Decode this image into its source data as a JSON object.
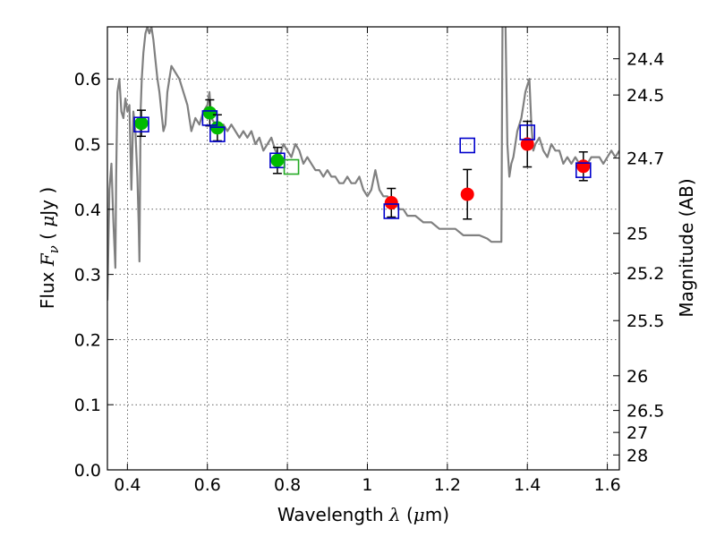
{
  "chart_data": {
    "type": "scatter",
    "xlabel": {
      "pre": "Wavelength  ",
      "sym": "λ",
      "open": " (",
      "mu": "μ",
      "unit": "m)"
    },
    "ylabel": {
      "pre": "Flux  ",
      "sym": "F",
      "sub": "ν",
      "open": "  ( ",
      "mu": "μ",
      "unit": "Jy )"
    },
    "y2label": "Magnitude (AB)",
    "xlim": [
      0.35,
      1.63
    ],
    "ylim": [
      0.0,
      0.68
    ],
    "grid": true,
    "x_ticks": [
      0.4,
      0.6,
      0.8,
      1.0,
      1.2,
      1.4,
      1.6
    ],
    "x_tick_labels": [
      "0.4",
      "0.6",
      "0.8",
      "1",
      "1.2",
      "1.4",
      "1.6"
    ],
    "y_ticks": [
      0.0,
      0.1,
      0.2,
      0.3,
      0.4,
      0.5,
      0.6
    ],
    "y_tick_labels": [
      "0.0",
      "0.1",
      "0.2",
      "0.3",
      "0.4",
      "0.5",
      "0.6"
    ],
    "y2_ticks": [
      {
        "label": "24.4",
        "flux": 0.631
      },
      {
        "label": "24.5",
        "flux": 0.5754
      },
      {
        "label": "24.7",
        "flux": 0.4786
      },
      {
        "label": "25",
        "flux": 0.3631
      },
      {
        "label": "25.2",
        "flux": 0.302
      },
      {
        "label": "25.5",
        "flux": 0.2291
      },
      {
        "label": "26",
        "flux": 0.1445
      },
      {
        "label": "26.5",
        "flux": 0.0912
      },
      {
        "label": "27",
        "flux": 0.0575
      },
      {
        "label": "28",
        "flux": 0.0229
      }
    ],
    "colors": {
      "model": "#808080",
      "optical": "#00bb00",
      "infrared": "#ff0000",
      "model_band": "#0000cc",
      "hollow_optical": "#22aa22",
      "errorbar": "#000000"
    },
    "model_spectrum": {
      "x": [
        0.35,
        0.355,
        0.36,
        0.365,
        0.37,
        0.372,
        0.375,
        0.38,
        0.385,
        0.39,
        0.395,
        0.4,
        0.405,
        0.41,
        0.415,
        0.42,
        0.425,
        0.428,
        0.43,
        0.433,
        0.436,
        0.44,
        0.445,
        0.45,
        0.455,
        0.46,
        0.465,
        0.47,
        0.475,
        0.48,
        0.485,
        0.49,
        0.495,
        0.5,
        0.51,
        0.52,
        0.53,
        0.54,
        0.55,
        0.56,
        0.57,
        0.58,
        0.59,
        0.6,
        0.605,
        0.61,
        0.62,
        0.63,
        0.64,
        0.65,
        0.66,
        0.67,
        0.68,
        0.69,
        0.7,
        0.71,
        0.72,
        0.73,
        0.74,
        0.75,
        0.76,
        0.77,
        0.78,
        0.79,
        0.8,
        0.81,
        0.82,
        0.83,
        0.84,
        0.85,
        0.86,
        0.87,
        0.88,
        0.89,
        0.9,
        0.91,
        0.92,
        0.93,
        0.94,
        0.95,
        0.96,
        0.97,
        0.98,
        0.99,
        1.0,
        1.01,
        1.02,
        1.03,
        1.04,
        1.05,
        1.06,
        1.07,
        1.08,
        1.09,
        1.1,
        1.12,
        1.14,
        1.16,
        1.18,
        1.2,
        1.22,
        1.24,
        1.26,
        1.28,
        1.3,
        1.31,
        1.32,
        1.33,
        1.335,
        1.338,
        1.34,
        1.345,
        1.35,
        1.355,
        1.36,
        1.365,
        1.37,
        1.375,
        1.38,
        1.385,
        1.39,
        1.395,
        1.4,
        1.405,
        1.41,
        1.415,
        1.42,
        1.43,
        1.44,
        1.45,
        1.46,
        1.47,
        1.48,
        1.49,
        1.5,
        1.51,
        1.52,
        1.53,
        1.54,
        1.55,
        1.56,
        1.57,
        1.58,
        1.59,
        1.6,
        1.61,
        1.62,
        1.63
      ],
      "y": [
        0.26,
        0.43,
        0.47,
        0.38,
        0.31,
        0.45,
        0.58,
        0.6,
        0.55,
        0.54,
        0.57,
        0.55,
        0.56,
        0.43,
        0.55,
        0.52,
        0.45,
        0.38,
        0.32,
        0.55,
        0.6,
        0.64,
        0.67,
        0.68,
        0.67,
        0.68,
        0.66,
        0.63,
        0.6,
        0.58,
        0.55,
        0.52,
        0.53,
        0.58,
        0.62,
        0.61,
        0.6,
        0.58,
        0.56,
        0.52,
        0.54,
        0.53,
        0.55,
        0.56,
        0.58,
        0.54,
        0.53,
        0.52,
        0.53,
        0.52,
        0.53,
        0.52,
        0.51,
        0.52,
        0.51,
        0.52,
        0.5,
        0.51,
        0.49,
        0.5,
        0.51,
        0.49,
        0.48,
        0.5,
        0.49,
        0.48,
        0.5,
        0.49,
        0.47,
        0.48,
        0.47,
        0.46,
        0.46,
        0.45,
        0.46,
        0.45,
        0.45,
        0.44,
        0.44,
        0.45,
        0.44,
        0.44,
        0.45,
        0.43,
        0.42,
        0.43,
        0.46,
        0.43,
        0.42,
        0.42,
        0.41,
        0.41,
        0.4,
        0.4,
        0.39,
        0.39,
        0.38,
        0.38,
        0.37,
        0.37,
        0.37,
        0.36,
        0.36,
        0.36,
        0.355,
        0.35,
        0.35,
        0.35,
        0.35,
        0.7,
        0.72,
        0.7,
        0.5,
        0.45,
        0.47,
        0.48,
        0.5,
        0.52,
        0.53,
        0.54,
        0.56,
        0.58,
        0.59,
        0.6,
        0.53,
        0.49,
        0.5,
        0.51,
        0.49,
        0.48,
        0.5,
        0.49,
        0.49,
        0.47,
        0.48,
        0.47,
        0.48,
        0.47,
        0.46,
        0.47,
        0.48,
        0.48,
        0.48,
        0.47,
        0.48,
        0.49,
        0.48,
        0.49
      ]
    },
    "series": [
      {
        "marker": "filled-circle",
        "color": "optical",
        "points": [
          {
            "x": 0.435,
            "y": 0.532,
            "err": 0.02
          },
          {
            "x": 0.606,
            "y": 0.548,
            "err": 0.02
          },
          {
            "x": 0.625,
            "y": 0.525,
            "err": 0.02
          },
          {
            "x": 0.775,
            "y": 0.475,
            "err": 0.02
          }
        ]
      },
      {
        "marker": "filled-circle",
        "color": "infrared",
        "points": [
          {
            "x": 1.06,
            "y": 0.41,
            "err": 0.022
          },
          {
            "x": 1.25,
            "y": 0.423,
            "err": 0.038
          },
          {
            "x": 1.4,
            "y": 0.5,
            "err": 0.035
          },
          {
            "x": 1.54,
            "y": 0.466,
            "err": 0.022
          }
        ]
      },
      {
        "marker": "open-square",
        "color": "model_band",
        "points": [
          {
            "x": 0.435,
            "y": 0.53
          },
          {
            "x": 0.606,
            "y": 0.54
          },
          {
            "x": 0.625,
            "y": 0.515
          },
          {
            "x": 0.775,
            "y": 0.475
          },
          {
            "x": 1.06,
            "y": 0.397
          },
          {
            "x": 1.25,
            "y": 0.498
          },
          {
            "x": 1.4,
            "y": 0.518
          },
          {
            "x": 1.54,
            "y": 0.46
          }
        ]
      },
      {
        "marker": "open-square",
        "color": "hollow_optical",
        "points": [
          {
            "x": 0.81,
            "y": 0.465
          }
        ]
      }
    ]
  }
}
